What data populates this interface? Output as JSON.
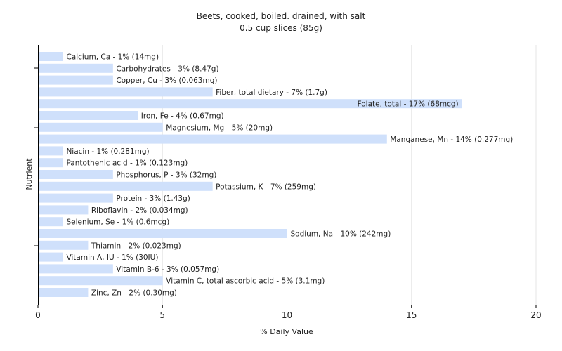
{
  "chart_data": {
    "type": "bar",
    "orientation": "horizontal",
    "title": "Beets, cooked, boiled. drained, with salt",
    "subtitle": "0.5 cup slices (85g)",
    "xlabel": "% Daily Value",
    "ylabel": "Nutrient",
    "xlim": [
      0,
      20
    ],
    "xticks": [
      "0",
      "5",
      "10",
      "15",
      "20"
    ],
    "grid": true,
    "bar_color": "#cfe0fb",
    "gridline_color": "#e6e6e6",
    "categories": [
      "Calcium, Ca",
      "Carbohydrates",
      "Copper, Cu",
      "Fiber, total dietary",
      "Folate, total",
      "Iron, Fe",
      "Magnesium, Mg",
      "Manganese, Mn",
      "Niacin",
      "Pantothenic acid",
      "Phosphorus, P",
      "Potassium, K",
      "Protein",
      "Riboflavin",
      "Selenium, Se",
      "Sodium, Na",
      "Thiamin",
      "Vitamin A, IU",
      "Vitamin B-6",
      "Vitamin C, total ascorbic acid",
      "Zinc, Zn"
    ],
    "values": [
      1,
      3,
      3,
      7,
      17,
      4,
      5,
      14,
      1,
      1,
      3,
      7,
      3,
      2,
      1,
      10,
      2,
      1,
      3,
      5,
      2
    ],
    "labels": [
      "Calcium, Ca - 1% (14mg)",
      "Carbohydrates - 3% (8.47g)",
      "Copper, Cu - 3% (0.063mg)",
      "Fiber, total dietary - 7% (1.7g)",
      "Folate, total - 17% (68mcg)",
      "Iron, Fe - 4% (0.67mg)",
      "Magnesium, Mg - 5% (20mg)",
      "Manganese, Mn - 14% (0.277mg)",
      "Niacin - 1% (0.281mg)",
      "Pantothenic acid - 1% (0.123mg)",
      "Phosphorus, P - 3% (32mg)",
      "Potassium, K - 7% (259mg)",
      "Protein - 3% (1.43g)",
      "Riboflavin - 2% (0.034mg)",
      "Selenium, Se - 1% (0.6mcg)",
      "Sodium, Na - 10% (242mg)",
      "Thiamin - 2% (0.023mg)",
      "Vitamin A, IU - 1% (30IU)",
      "Vitamin B-6 - 3% (0.057mg)",
      "Vitamin C, total ascorbic acid - 5% (3.1mg)",
      "Zinc, Zn - 2% (0.30mg)"
    ]
  }
}
